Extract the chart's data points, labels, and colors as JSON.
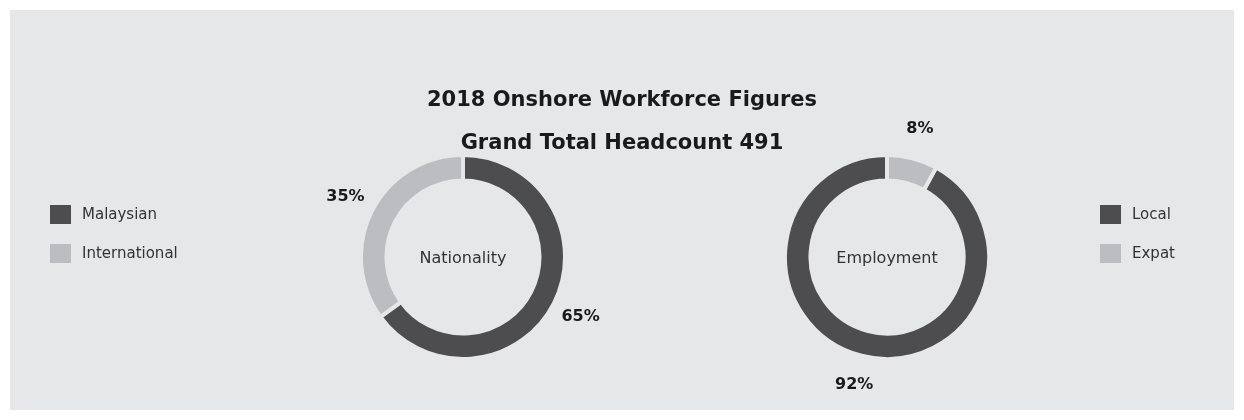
{
  "chart_data": [
    {
      "type": "donut",
      "title": "2018 Onshore Workforce Figures",
      "subtitle": "Grand Total Headcount 491",
      "categories": [
        "Malaysian",
        "International"
      ],
      "values": [
        65,
        35
      ],
      "value_labels": [
        "65%",
        "35%"
      ],
      "colors": [
        "#4d4d4f",
        "#bcbdc0"
      ],
      "legend": "left",
      "annotations": [
        "Nationality"
      ]
    },
    {
      "type": "donut",
      "categories": [
        "Local",
        "Expat"
      ],
      "values": [
        92,
        8
      ],
      "value_labels": [
        "92%",
        "8%"
      ],
      "colors": [
        "#4d4d4f",
        "#bcbdc0"
      ],
      "legend": "right",
      "annotations": [
        "Employment"
      ]
    }
  ]
}
